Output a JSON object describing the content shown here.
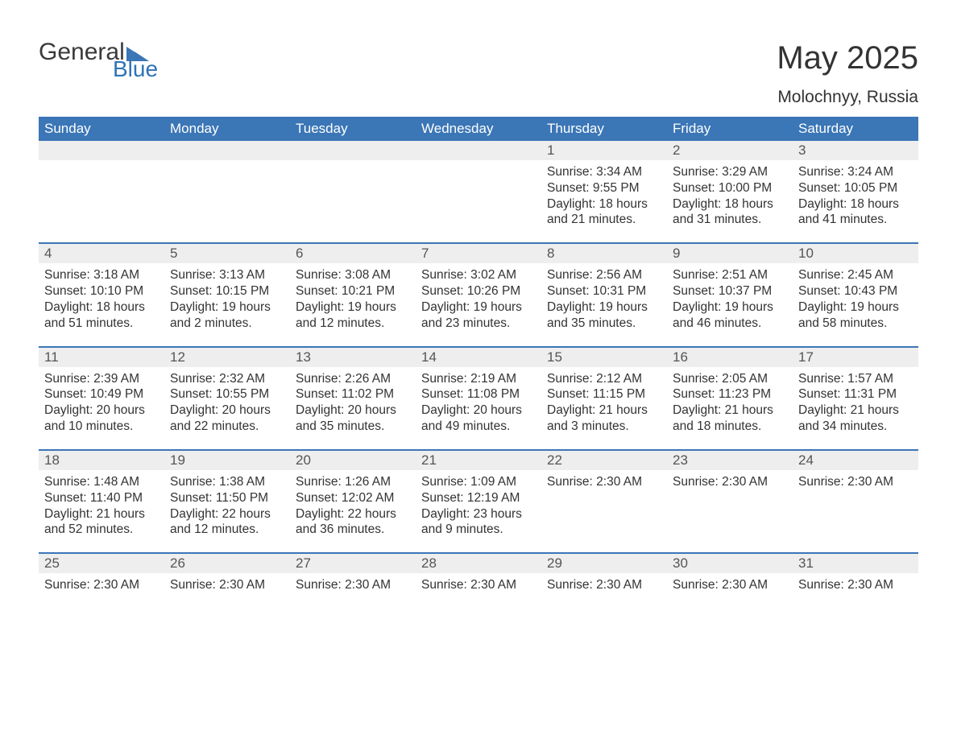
{
  "logo": {
    "word1": "General",
    "word2": "Blue",
    "tri_color": "#3b76b6"
  },
  "title": "May 2025",
  "subtitle": "Molochnyy, Russia",
  "colors": {
    "header_bg": "#3b76b6",
    "daynum_bg": "#eeeeee",
    "text": "#333333",
    "row_border": "#3b76b6"
  },
  "day_headers": [
    "Sunday",
    "Monday",
    "Tuesday",
    "Wednesday",
    "Thursday",
    "Friday",
    "Saturday"
  ],
  "weeks": [
    [
      {
        "num": "",
        "lines": []
      },
      {
        "num": "",
        "lines": []
      },
      {
        "num": "",
        "lines": []
      },
      {
        "num": "",
        "lines": []
      },
      {
        "num": "1",
        "lines": [
          "Sunrise: 3:34 AM",
          "Sunset: 9:55 PM",
          "Daylight: 18 hours",
          "and 21 minutes."
        ]
      },
      {
        "num": "2",
        "lines": [
          "Sunrise: 3:29 AM",
          "Sunset: 10:00 PM",
          "Daylight: 18 hours",
          "and 31 minutes."
        ]
      },
      {
        "num": "3",
        "lines": [
          "Sunrise: 3:24 AM",
          "Sunset: 10:05 PM",
          "Daylight: 18 hours",
          "and 41 minutes."
        ]
      }
    ],
    [
      {
        "num": "4",
        "lines": [
          "Sunrise: 3:18 AM",
          "Sunset: 10:10 PM",
          "Daylight: 18 hours",
          "and 51 minutes."
        ]
      },
      {
        "num": "5",
        "lines": [
          "Sunrise: 3:13 AM",
          "Sunset: 10:15 PM",
          "Daylight: 19 hours",
          "and 2 minutes."
        ]
      },
      {
        "num": "6",
        "lines": [
          "Sunrise: 3:08 AM",
          "Sunset: 10:21 PM",
          "Daylight: 19 hours",
          "and 12 minutes."
        ]
      },
      {
        "num": "7",
        "lines": [
          "Sunrise: 3:02 AM",
          "Sunset: 10:26 PM",
          "Daylight: 19 hours",
          "and 23 minutes."
        ]
      },
      {
        "num": "8",
        "lines": [
          "Sunrise: 2:56 AM",
          "Sunset: 10:31 PM",
          "Daylight: 19 hours",
          "and 35 minutes."
        ]
      },
      {
        "num": "9",
        "lines": [
          "Sunrise: 2:51 AM",
          "Sunset: 10:37 PM",
          "Daylight: 19 hours",
          "and 46 minutes."
        ]
      },
      {
        "num": "10",
        "lines": [
          "Sunrise: 2:45 AM",
          "Sunset: 10:43 PM",
          "Daylight: 19 hours",
          "and 58 minutes."
        ]
      }
    ],
    [
      {
        "num": "11",
        "lines": [
          "Sunrise: 2:39 AM",
          "Sunset: 10:49 PM",
          "Daylight: 20 hours",
          "and 10 minutes."
        ]
      },
      {
        "num": "12",
        "lines": [
          "Sunrise: 2:32 AM",
          "Sunset: 10:55 PM",
          "Daylight: 20 hours",
          "and 22 minutes."
        ]
      },
      {
        "num": "13",
        "lines": [
          "Sunrise: 2:26 AM",
          "Sunset: 11:02 PM",
          "Daylight: 20 hours",
          "and 35 minutes."
        ]
      },
      {
        "num": "14",
        "lines": [
          "Sunrise: 2:19 AM",
          "Sunset: 11:08 PM",
          "Daylight: 20 hours",
          "and 49 minutes."
        ]
      },
      {
        "num": "15",
        "lines": [
          "Sunrise: 2:12 AM",
          "Sunset: 11:15 PM",
          "Daylight: 21 hours",
          "and 3 minutes."
        ]
      },
      {
        "num": "16",
        "lines": [
          "Sunrise: 2:05 AM",
          "Sunset: 11:23 PM",
          "Daylight: 21 hours",
          "and 18 minutes."
        ]
      },
      {
        "num": "17",
        "lines": [
          "Sunrise: 1:57 AM",
          "Sunset: 11:31 PM",
          "Daylight: 21 hours",
          "and 34 minutes."
        ]
      }
    ],
    [
      {
        "num": "18",
        "lines": [
          "Sunrise: 1:48 AM",
          "Sunset: 11:40 PM",
          "Daylight: 21 hours",
          "and 52 minutes."
        ]
      },
      {
        "num": "19",
        "lines": [
          "Sunrise: 1:38 AM",
          "Sunset: 11:50 PM",
          "Daylight: 22 hours",
          "and 12 minutes."
        ]
      },
      {
        "num": "20",
        "lines": [
          "Sunrise: 1:26 AM",
          "Sunset: 12:02 AM",
          "Daylight: 22 hours",
          "and 36 minutes."
        ]
      },
      {
        "num": "21",
        "lines": [
          "Sunrise: 1:09 AM",
          "Sunset: 12:19 AM",
          "Daylight: 23 hours",
          "and 9 minutes."
        ]
      },
      {
        "num": "22",
        "lines": [
          "Sunrise: 2:30 AM"
        ]
      },
      {
        "num": "23",
        "lines": [
          "Sunrise: 2:30 AM"
        ]
      },
      {
        "num": "24",
        "lines": [
          "Sunrise: 2:30 AM"
        ]
      }
    ],
    [
      {
        "num": "25",
        "lines": [
          "Sunrise: 2:30 AM"
        ]
      },
      {
        "num": "26",
        "lines": [
          "Sunrise: 2:30 AM"
        ]
      },
      {
        "num": "27",
        "lines": [
          "Sunrise: 2:30 AM"
        ]
      },
      {
        "num": "28",
        "lines": [
          "Sunrise: 2:30 AM"
        ]
      },
      {
        "num": "29",
        "lines": [
          "Sunrise: 2:30 AM"
        ]
      },
      {
        "num": "30",
        "lines": [
          "Sunrise: 2:30 AM"
        ]
      },
      {
        "num": "31",
        "lines": [
          "Sunrise: 2:30 AM"
        ]
      }
    ]
  ]
}
